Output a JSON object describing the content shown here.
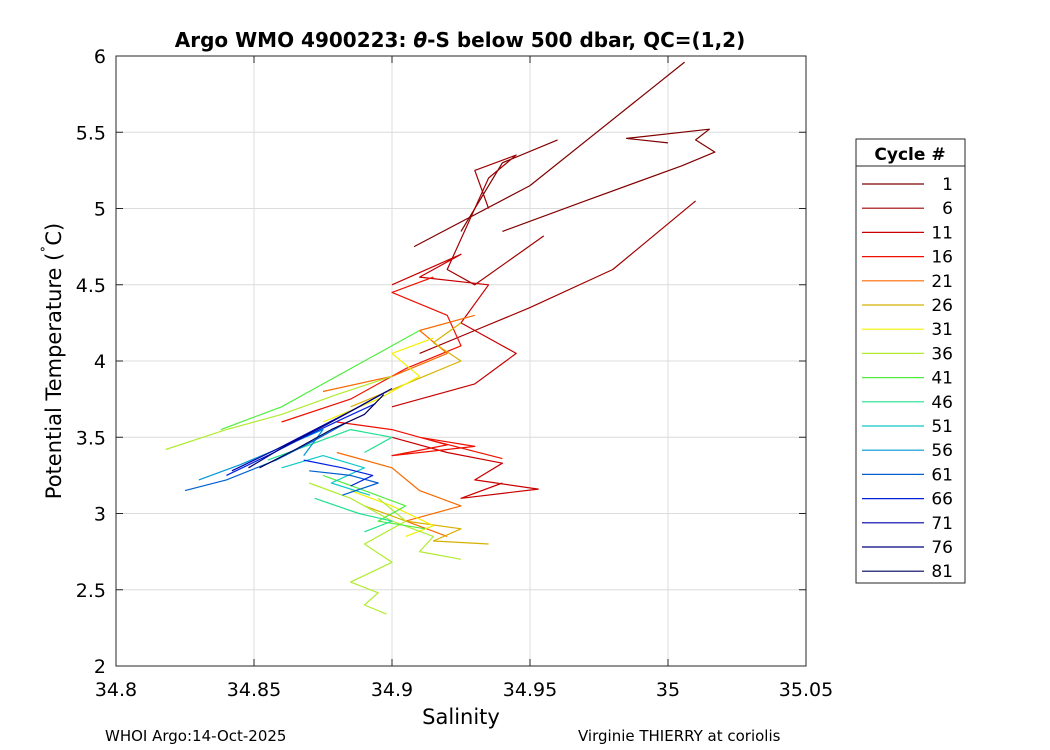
{
  "chart_data": {
    "type": "line",
    "title_prefix": "Argo WMO 4900223: ",
    "title_symbol": "θ",
    "title_suffix": "-S below 500 dbar,  QC=(1,2)",
    "xlabel": "Salinity",
    "ylabel_main": "Potential Temperature (",
    "ylabel_degree": "˚",
    "ylabel_unit": "C)",
    "xlim": [
      34.8,
      35.05
    ],
    "ylim": [
      2,
      6
    ],
    "x_ticks": [
      34.8,
      34.85,
      34.9,
      34.95,
      35,
      35.05
    ],
    "x_tick_labels": [
      "34.8",
      "34.85",
      "34.9",
      "34.95",
      "35",
      "35.05"
    ],
    "y_ticks": [
      2,
      2.5,
      3,
      3.5,
      4,
      4.5,
      5,
      5.5,
      6
    ],
    "y_tick_labels": [
      "2",
      "2.5",
      "3",
      "3.5",
      "4",
      "4.5",
      "5",
      "5.5",
      "6"
    ],
    "grid": true,
    "legend": {
      "title": "Cycle #",
      "placement": "outside-right",
      "entries": [
        {
          "label": "1",
          "color": "#800000"
        },
        {
          "label": "6",
          "color": "#a00000"
        },
        {
          "label": "11",
          "color": "#c80000"
        },
        {
          "label": "16",
          "color": "#f01000"
        },
        {
          "label": "21",
          "color": "#f86a00"
        },
        {
          "label": "26",
          "color": "#d8b000"
        },
        {
          "label": "31",
          "color": "#f4f000"
        },
        {
          "label": "36",
          "color": "#b0ec30"
        },
        {
          "label": "41",
          "color": "#50ee40"
        },
        {
          "label": "46",
          "color": "#20e090"
        },
        {
          "label": "51",
          "color": "#10c8c8"
        },
        {
          "label": "56",
          "color": "#0096d8"
        },
        {
          "label": "61",
          "color": "#0060d0"
        },
        {
          "label": "66",
          "color": "#0020e0"
        },
        {
          "label": "71",
          "color": "#0000a8"
        },
        {
          "label": "76",
          "color": "#000080"
        },
        {
          "label": "81",
          "color": "#000060"
        }
      ]
    },
    "series": [
      {
        "name": "1",
        "color": "#800000",
        "x": [
          34.908,
          34.95,
          35.006
        ],
        "y": [
          4.75,
          5.15,
          5.96
        ]
      },
      {
        "name": "1b",
        "color": "#800000",
        "x": [
          35.0,
          34.985,
          35.015,
          35.01,
          35.017,
          35.005,
          34.97,
          34.94
        ],
        "y": [
          5.43,
          5.46,
          5.52,
          5.45,
          5.37,
          5.28,
          5.05,
          4.85
        ]
      },
      {
        "name": "1c",
        "color": "#800000",
        "x": [
          34.925,
          34.94,
          34.96
        ],
        "y": [
          4.85,
          5.3,
          5.45
        ]
      },
      {
        "name": "6",
        "color": "#a00000",
        "x": [
          34.935,
          34.93,
          34.945,
          34.935,
          34.92,
          34.93,
          34.955
        ],
        "y": [
          5.0,
          5.25,
          5.35,
          5.2,
          4.6,
          4.5,
          4.82
        ]
      },
      {
        "name": "6b",
        "color": "#a00000",
        "x": [
          34.91,
          34.93,
          34.95,
          34.98,
          35.01
        ],
        "y": [
          4.05,
          4.2,
          4.35,
          4.6,
          5.05
        ]
      },
      {
        "name": "11",
        "color": "#c80000",
        "x": [
          34.9,
          34.93,
          34.945,
          34.925,
          34.935,
          34.91,
          34.925,
          34.9
        ],
        "y": [
          3.7,
          3.85,
          4.05,
          4.25,
          4.5,
          4.55,
          4.7,
          4.5
        ]
      },
      {
        "name": "11b",
        "color": "#c80000",
        "x": [
          34.9,
          34.92,
          34.94,
          34.93,
          34.953,
          34.925,
          34.94
        ],
        "y": [
          3.5,
          3.4,
          3.33,
          3.22,
          3.16,
          3.1,
          3.2
        ]
      },
      {
        "name": "16",
        "color": "#f01000",
        "x": [
          34.88,
          34.9,
          34.92,
          34.9,
          34.93,
          34.91,
          34.94
        ],
        "y": [
          3.6,
          3.55,
          3.45,
          3.38,
          3.44,
          3.5,
          3.36
        ]
      },
      {
        "name": "16b",
        "color": "#f01000",
        "x": [
          34.86,
          34.885,
          34.905,
          34.925,
          34.92,
          34.9,
          34.915
        ],
        "y": [
          3.6,
          3.75,
          3.95,
          4.1,
          4.3,
          4.45,
          4.55
        ]
      },
      {
        "name": "21",
        "color": "#f86a00",
        "x": [
          34.88,
          34.9,
          34.91,
          34.925,
          34.905,
          34.92
        ],
        "y": [
          3.4,
          3.3,
          3.15,
          3.05,
          2.95,
          2.85
        ]
      },
      {
        "name": "21b",
        "color": "#f86a00",
        "x": [
          34.875,
          34.9,
          34.92,
          34.91,
          34.93
        ],
        "y": [
          3.8,
          3.9,
          4.05,
          4.2,
          4.3
        ]
      },
      {
        "name": "26",
        "color": "#d8b000",
        "x": [
          34.89,
          34.905,
          34.925,
          34.915,
          34.935
        ],
        "y": [
          3.05,
          2.95,
          2.9,
          2.82,
          2.8
        ]
      },
      {
        "name": "26b",
        "color": "#d8b000",
        "x": [
          34.885,
          34.905,
          34.925,
          34.915,
          34.925
        ],
        "y": [
          3.7,
          3.85,
          4.0,
          4.12,
          4.25
        ]
      },
      {
        "name": "31",
        "color": "#f4f000",
        "x": [
          34.875,
          34.895,
          34.91,
          34.9,
          34.915
        ],
        "y": [
          3.6,
          3.75,
          3.9,
          4.05,
          4.15
        ]
      },
      {
        "name": "31b",
        "color": "#f4f000",
        "x": [
          34.885,
          34.9,
          34.915,
          34.905
        ],
        "y": [
          3.15,
          3.05,
          2.92,
          2.85
        ]
      },
      {
        "name": "36",
        "color": "#b0ec30",
        "x": [
          34.818,
          34.84,
          34.86,
          34.88,
          34.9
        ],
        "y": [
          3.42,
          3.55,
          3.65,
          3.78,
          3.9
        ]
      },
      {
        "name": "36b",
        "color": "#b0ec30",
        "x": [
          34.895,
          34.905,
          34.89,
          34.9,
          34.885,
          34.895,
          34.89,
          34.898
        ],
        "y": [
          3.1,
          2.95,
          2.8,
          2.68,
          2.55,
          2.48,
          2.4,
          2.34
        ]
      },
      {
        "name": "36c",
        "color": "#b0ec30",
        "x": [
          34.87,
          34.885,
          34.9,
          34.915,
          34.91,
          34.925
        ],
        "y": [
          3.2,
          3.1,
          2.95,
          2.85,
          2.75,
          2.7
        ]
      },
      {
        "name": "41",
        "color": "#50ee40",
        "x": [
          34.838,
          34.86,
          34.875,
          34.895,
          34.91
        ],
        "y": [
          3.55,
          3.7,
          3.85,
          4.05,
          4.2
        ]
      },
      {
        "name": "41b",
        "color": "#50ee40",
        "x": [
          34.875,
          34.89,
          34.905,
          34.895,
          34.912
        ],
        "y": [
          3.25,
          3.15,
          3.05,
          2.95,
          2.9
        ]
      },
      {
        "name": "46",
        "color": "#20e090",
        "x": [
          34.855,
          34.87,
          34.885,
          34.9,
          34.89
        ],
        "y": [
          3.35,
          3.45,
          3.55,
          3.5,
          3.4
        ]
      },
      {
        "name": "46b",
        "color": "#20e090",
        "x": [
          34.872,
          34.888,
          34.9,
          34.89
        ],
        "y": [
          3.1,
          3.0,
          2.95,
          2.88
        ]
      },
      {
        "name": "51",
        "color": "#10c8c8",
        "x": [
          34.86,
          34.875,
          34.89,
          34.878,
          34.892
        ],
        "y": [
          3.3,
          3.38,
          3.3,
          3.2,
          3.12
        ]
      },
      {
        "name": "56",
        "color": "#0096d8",
        "x": [
          34.83,
          34.845,
          34.862,
          34.875,
          34.868
        ],
        "y": [
          3.22,
          3.32,
          3.45,
          3.55,
          3.38
        ]
      },
      {
        "name": "61",
        "color": "#0060d0",
        "x": [
          34.825,
          34.84,
          34.858,
          34.872,
          34.884
        ],
        "y": [
          3.15,
          3.22,
          3.35,
          3.48,
          3.6
        ]
      },
      {
        "name": "61b",
        "color": "#0060d0",
        "x": [
          34.87,
          34.885,
          34.895,
          34.882
        ],
        "y": [
          3.28,
          3.25,
          3.2,
          3.12
        ]
      },
      {
        "name": "66",
        "color": "#0020e0",
        "x": [
          34.84,
          34.855,
          34.868,
          34.882,
          34.894
        ],
        "y": [
          3.25,
          3.38,
          3.5,
          3.62,
          3.72
        ]
      },
      {
        "name": "66b",
        "color": "#0020e0",
        "x": [
          34.868,
          34.882,
          34.893,
          34.885
        ],
        "y": [
          3.35,
          3.3,
          3.25,
          3.18
        ]
      },
      {
        "name": "71",
        "color": "#0000a8",
        "x": [
          34.842,
          34.858,
          34.872,
          34.886,
          34.898
        ],
        "y": [
          3.28,
          3.42,
          3.55,
          3.68,
          3.8
        ]
      },
      {
        "name": "76",
        "color": "#000080",
        "x": [
          34.848,
          34.862,
          34.876,
          34.888,
          34.9
        ],
        "y": [
          3.3,
          3.45,
          3.58,
          3.7,
          3.82
        ]
      },
      {
        "name": "81",
        "color": "#000060",
        "x": [
          34.852,
          34.865,
          34.878,
          34.89,
          34.897
        ],
        "y": [
          3.3,
          3.42,
          3.55,
          3.65,
          3.78
        ]
      }
    ]
  },
  "footer": {
    "left": "WHOI Argo:14-Oct-2025",
    "right": "Virginie THIERRY at coriolis"
  }
}
